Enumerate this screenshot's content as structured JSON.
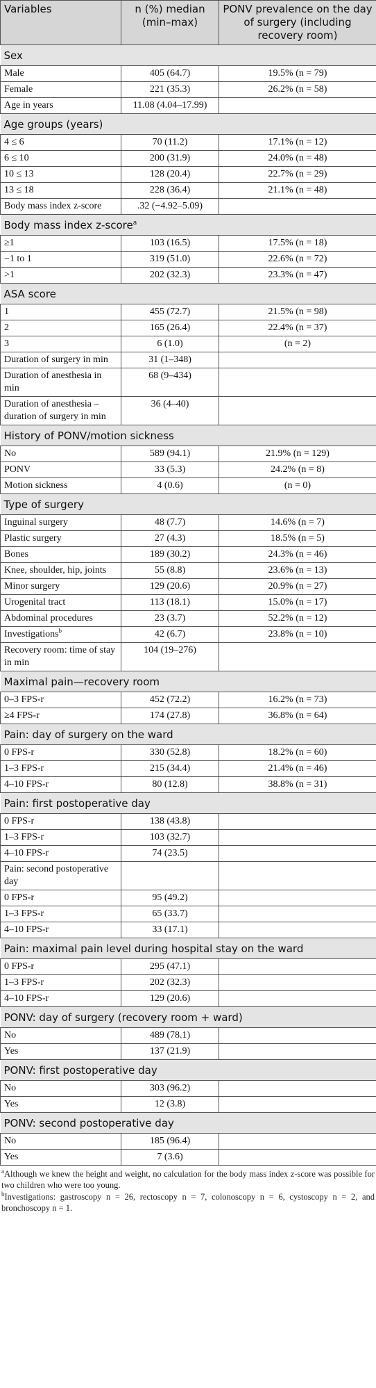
{
  "header": [
    "Variables",
    "n (%) median (min–max)",
    "PONV prevalence on the day of surgery (including recovery room)"
  ],
  "sections": [
    {
      "title": "Sex",
      "rows": [
        [
          "Male",
          "405 (64.7)",
          "19.5% (n = 79)"
        ],
        [
          "Female",
          "221 (35.3)",
          "26.2% (n = 58)"
        ],
        [
          "Age in years",
          "11.08 (4.04–17.99)",
          null
        ]
      ]
    },
    {
      "title": "Age groups (years)",
      "rows": [
        [
          "4 ≤ 6",
          "70 (11.2)",
          "17.1% (n = 12)"
        ],
        [
          "6 ≤ 10",
          "200 (31.9)",
          "24.0% (n = 48)"
        ],
        [
          "10 ≤ 13",
          "128 (20.4)",
          "22.7% (n = 29)"
        ],
        [
          "13 ≤ 18",
          "228 (36.4)",
          "21.1% (n = 48)"
        ],
        [
          "Body mass index z-score",
          ".32 (−4.92–5.09)",
          null
        ]
      ]
    },
    {
      "title": {
        "text": "Body mass index z-score",
        "note": "a"
      },
      "rows": [
        [
          "≥1",
          "103 (16.5)",
          "17.5% (n = 18)"
        ],
        [
          "−1 to 1",
          "319 (51.0)",
          "22.6% (n = 72)"
        ],
        [
          ">1",
          "202 (32.3)",
          "23.3% (n = 47)"
        ]
      ]
    },
    {
      "title": "ASA score",
      "rows": [
        [
          "1",
          "455 (72.7)",
          "21.5% (n = 98)"
        ],
        [
          "2",
          "165 (26.4)",
          "22.4% (n = 37)"
        ],
        [
          "3",
          "6 (1.0)",
          "(n = 2)"
        ],
        [
          "Duration of surgery in min",
          "31 (1–348)",
          null
        ],
        [
          "Duration of anesthesia in min",
          "68 (9–434)",
          null
        ],
        [
          "Duration of anesthesia – duration of surgery in min",
          "36 (4–40)",
          null
        ]
      ]
    },
    {
      "title": "History of PONV/motion sickness",
      "rows": [
        [
          "No",
          "589 (94.1)",
          "21.9% (n = 129)"
        ],
        [
          "PONV",
          "33 (5.3)",
          "24.2% (n = 8)"
        ],
        [
          "Motion sickness",
          "4 (0.6)",
          "(n = 0)"
        ]
      ]
    },
    {
      "title": "Type of surgery",
      "rows": [
        [
          "Inguinal surgery",
          "48 (7.7)",
          "14.6% (n = 7)"
        ],
        [
          "Plastic surgery",
          "27 (4.3)",
          "18.5% (n = 5)"
        ],
        [
          "Bones",
          "189 (30.2)",
          "24.3% (n = 46)"
        ],
        [
          "Knee, shoulder, hip, joints",
          "55 (8.8)",
          "23.6% (n = 13)"
        ],
        [
          "Minor surgery",
          "129 (20.6)",
          "20.9% (n = 27)"
        ],
        [
          "Urogenital tract",
          "113 (18.1)",
          "15.0% (n = 17)"
        ],
        [
          "Abdominal procedures",
          "23 (3.7)",
          "52.2% (n = 12)"
        ],
        [
          {
            "text": "Investigations",
            "note": "b"
          },
          "42 (6.7)",
          "23.8% (n = 10)"
        ],
        [
          "Recovery room: time of stay in min",
          "104 (19–276)",
          null
        ]
      ]
    },
    {
      "title": "Maximal pain—recovery room",
      "rows": [
        [
          "0–3 FPS-r",
          "452 (72.2)",
          "16.2% (n = 73)"
        ],
        [
          "≥4 FPS-r",
          "174 (27.8)",
          "36.8% (n = 64)"
        ]
      ]
    },
    {
      "title": "Pain: day of surgery on the ward",
      "rows": [
        [
          "0 FPS-r",
          "330 (52.8)",
          "18.2% (n = 60)"
        ],
        [
          "1–3 FPS-r",
          "215 (34.4)",
          "21.4% (n = 46)"
        ],
        [
          "4–10 FPS-r",
          "80 (12.8)",
          "38.8% (n = 31)"
        ]
      ]
    },
    {
      "title": "Pain: first postoperative day",
      "rows": [
        [
          "0 FPS-r",
          "138 (43.8)",
          null
        ],
        [
          "1–3 FPS-r",
          "103 (32.7)",
          null
        ],
        [
          "4–10 FPS-r",
          "74 (23.5)",
          null
        ],
        [
          "Pain: second postoperative day",
          null,
          null
        ],
        [
          "0 FPS-r",
          "95 (49.2)",
          null
        ],
        [
          "1–3 FPS-r",
          "65 (33.7)",
          null
        ],
        [
          "4–10 FPS-r",
          "33 (17.1)",
          null
        ]
      ]
    },
    {
      "title": "Pain: maximal pain level during hospital stay on the ward",
      "rows": [
        [
          "0 FPS-r",
          "295 (47.1)",
          null
        ],
        [
          "1–3 FPS-r",
          "202 (32.3)",
          null
        ],
        [
          "4–10 FPS-r",
          "129 (20.6)",
          null
        ]
      ]
    },
    {
      "title": "PONV: day of surgery (recovery room + ward)",
      "rows": [
        [
          "No",
          "489 (78.1)",
          null
        ],
        [
          "Yes",
          "137 (21.9)",
          null
        ]
      ]
    },
    {
      "title": "PONV: first postoperative day",
      "rows": [
        [
          "No",
          "303 (96.2)",
          null
        ],
        [
          "Yes",
          "12 (3.8)",
          null
        ]
      ]
    },
    {
      "title": "PONV: second postoperative day",
      "rows": [
        [
          "No",
          "185 (96.4)",
          null
        ],
        [
          "Yes",
          "7 (3.6)",
          null
        ]
      ]
    }
  ],
  "footnotes": [
    {
      "mark": "a",
      "text": "Although we knew the height and weight, no calculation for the body mass index z-score was possible for two children who were too young."
    },
    {
      "mark": "b",
      "text": "Investigations: gastroscopy n = 26, rectoscopy n = 7, colonoscopy n = 6, cystoscopy n = 2, and bronchoscopy n = 1."
    }
  ]
}
